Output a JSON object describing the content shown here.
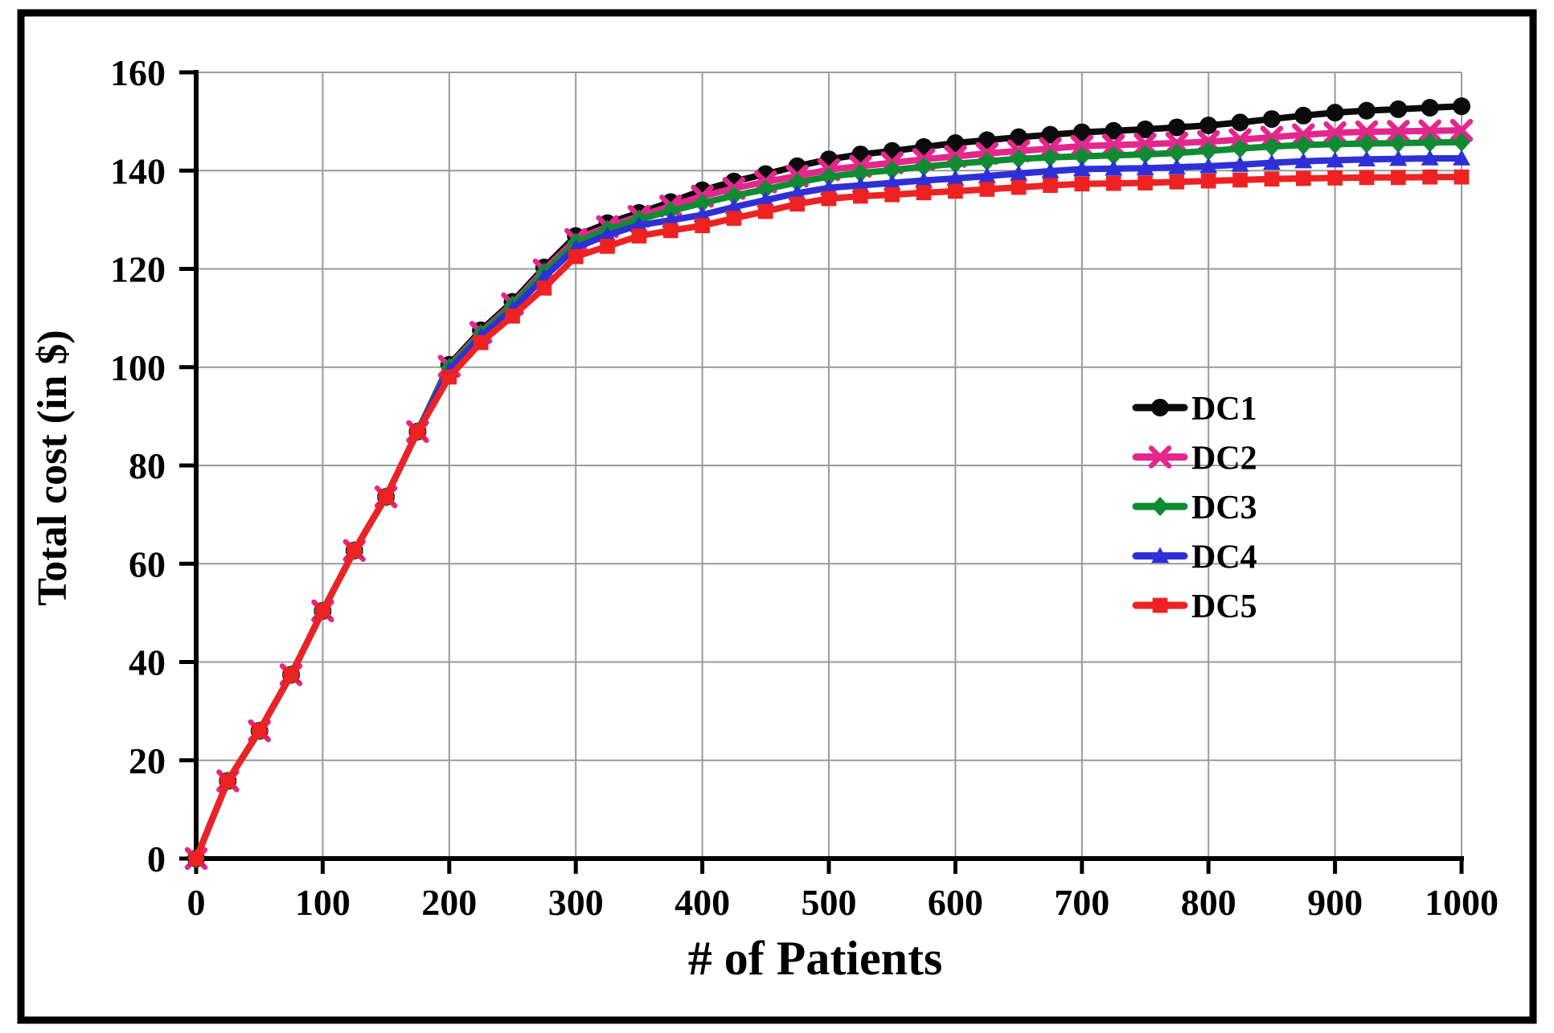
{
  "chart_data": {
    "type": "line",
    "title": "",
    "xlabel": "# of Patients",
    "ylabel": "Total cost (in $)",
    "xlim": [
      0,
      1000
    ],
    "ylim": [
      0,
      160
    ],
    "x_ticks": [
      0,
      100,
      200,
      300,
      400,
      500,
      600,
      700,
      800,
      900,
      1000
    ],
    "y_ticks": [
      0,
      20,
      40,
      60,
      80,
      100,
      120,
      140,
      160
    ],
    "grid": true,
    "legend_position": "middle-right",
    "x": [
      0,
      25,
      50,
      75,
      100,
      125,
      150,
      175,
      200,
      225,
      250,
      275,
      300,
      325,
      350,
      375,
      400,
      425,
      450,
      475,
      500,
      525,
      550,
      575,
      600,
      625,
      650,
      675,
      700,
      725,
      750,
      775,
      800,
      825,
      850,
      875,
      900,
      925,
      950,
      975,
      1000
    ],
    "series": [
      {
        "name": "DC1",
        "color": "#0b0b0b",
        "marker": "circle",
        "values": [
          0,
          15.8,
          26.0,
          37.4,
          50.4,
          62.7,
          73.6,
          86.9,
          100.5,
          107.5,
          113.3,
          120.3,
          126.7,
          129.3,
          131.4,
          133.6,
          136.0,
          137.8,
          139.3,
          140.9,
          142.3,
          143.3,
          144.0,
          144.8,
          145.6,
          146.2,
          146.8,
          147.3,
          147.8,
          148.1,
          148.4,
          148.8,
          149.2,
          149.8,
          150.5,
          151.2,
          151.8,
          152.2,
          152.5,
          152.8,
          153.1
        ]
      },
      {
        "name": "DC2",
        "color": "#e3278d",
        "marker": "x",
        "values": [
          0,
          15.8,
          26.0,
          37.4,
          50.4,
          62.7,
          73.6,
          86.9,
          100.2,
          107.1,
          112.9,
          119.8,
          126.0,
          128.6,
          130.7,
          132.8,
          134.8,
          136.4,
          137.7,
          138.9,
          140.2,
          140.9,
          141.6,
          142.3,
          142.9,
          143.5,
          144.0,
          144.5,
          145.0,
          145.2,
          145.4,
          145.6,
          145.9,
          146.3,
          146.8,
          147.3,
          147.7,
          147.9,
          148.0,
          148.1,
          148.2
        ]
      },
      {
        "name": "DC3",
        "color": "#0f8c32",
        "marker": "diamond",
        "values": [
          0,
          15.8,
          26.0,
          37.4,
          50.4,
          62.7,
          73.6,
          86.9,
          99.9,
          106.8,
          112.6,
          119.3,
          125.4,
          128.0,
          130.1,
          131.8,
          133.4,
          134.9,
          136.2,
          137.6,
          138.8,
          139.5,
          140.1,
          140.8,
          141.4,
          141.9,
          142.4,
          142.7,
          142.9,
          143.1,
          143.3,
          143.6,
          144.0,
          144.5,
          144.9,
          145.2,
          145.4,
          145.5,
          145.6,
          145.7,
          145.8
        ]
      },
      {
        "name": "DC4",
        "color": "#2f2fd8",
        "marker": "triangle",
        "values": [
          0,
          15.8,
          26.0,
          37.4,
          50.4,
          62.7,
          73.6,
          86.9,
          99.4,
          106.2,
          111.8,
          118.3,
          124.3,
          126.9,
          128.9,
          129.9,
          131.0,
          132.6,
          134.0,
          135.4,
          136.5,
          137.0,
          137.5,
          138.0,
          138.4,
          138.9,
          139.4,
          139.9,
          140.3,
          140.4,
          140.5,
          140.7,
          140.9,
          141.2,
          141.6,
          141.9,
          142.1,
          142.3,
          142.4,
          142.5,
          142.5
        ]
      },
      {
        "name": "DC5",
        "color": "#ee2222",
        "marker": "square",
        "values": [
          0,
          15.8,
          26.0,
          37.4,
          50.4,
          62.7,
          73.6,
          86.9,
          98.0,
          105.0,
          110.4,
          116.1,
          122.5,
          124.6,
          126.7,
          127.8,
          128.8,
          130.3,
          131.7,
          133.2,
          134.3,
          134.8,
          135.1,
          135.5,
          135.8,
          136.2,
          136.6,
          137.0,
          137.3,
          137.4,
          137.5,
          137.7,
          137.9,
          138.1,
          138.3,
          138.4,
          138.5,
          138.6,
          138.6,
          138.7,
          138.7
        ]
      }
    ],
    "styles": {
      "background": "#ffffff",
      "grid_color": "#9a9a9a",
      "axis_color": "#000000",
      "frame_color": "#000000"
    }
  }
}
